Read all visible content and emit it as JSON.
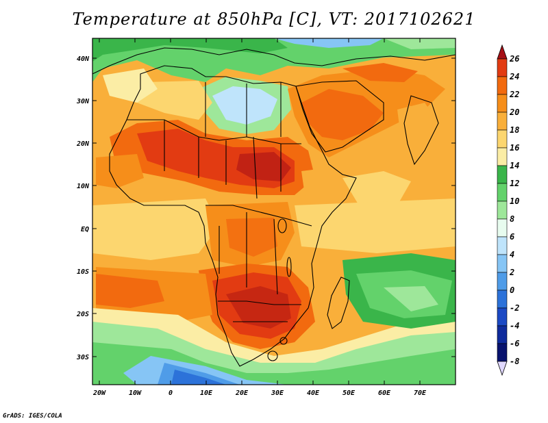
{
  "title": "Temperature at 850hPa [C], VT: 2017102621",
  "credit": "GrADS: IGES/COLA",
  "map": {
    "lat_labels": [
      "40N",
      "30N",
      "20N",
      "10N",
      "EQ",
      "10S",
      "20S",
      "30S"
    ],
    "lat_values": [
      40,
      30,
      20,
      10,
      0,
      -10,
      -20,
      -30
    ],
    "lon_labels": [
      "20W",
      "10W",
      "0",
      "10E",
      "20E",
      "30E",
      "40E",
      "50E",
      "60E",
      "70E"
    ],
    "lon_values": [
      -20,
      -10,
      0,
      10,
      20,
      30,
      40,
      50,
      60,
      70
    ],
    "lon_range": [
      -22,
      80
    ],
    "lat_range": [
      -37,
      45
    ]
  },
  "colorbar": {
    "levels": [
      "26",
      "24",
      "22",
      "20",
      "18",
      "16",
      "14",
      "12",
      "10",
      "8",
      "6",
      "4",
      "2",
      "0",
      "-2",
      "-4",
      "-6",
      "-8"
    ],
    "colors": [
      "#a50f15",
      "#e23b12",
      "#f26a0f",
      "#f68e1a",
      "#f9af3a",
      "#fcd66f",
      "#fbeda5",
      "#3ab54a",
      "#63d26b",
      "#9ee79a",
      "#e8fcef",
      "#bfe4fb",
      "#86c5f5",
      "#4f9ce8",
      "#2c72d9",
      "#1b49c4",
      "#0f2b9c",
      "#08136e",
      "#e0d8ff"
    ]
  }
}
